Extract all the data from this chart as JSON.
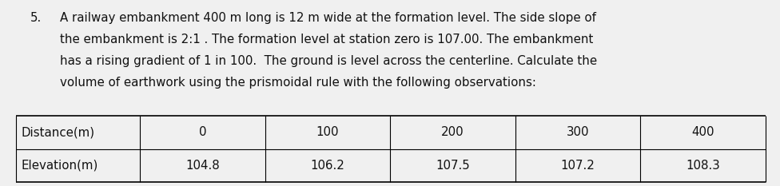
{
  "question_number": "5.",
  "lines": [
    "A railway embankment 400 m long is 12 m wide at the formation level. The side slope of",
    "the embankment is 2:1 . The formation level at station zero is 107.00. The embankment",
    "has a rising gradient of 1 in 100.  The ground is level across the centerline. Calculate the",
    "volume of earthwork using the prismoidal rule with the following observations:"
  ],
  "table_headers": [
    "Distance(m)",
    "0",
    "100",
    "200",
    "300",
    "400"
  ],
  "table_row2": [
    "Elevation(m)",
    "104.8",
    "106.2",
    "107.5",
    "107.2",
    "108.3"
  ],
  "bg_color": "#f0f0f0",
  "text_color": "#111111",
  "font_size": 10.8,
  "table_font_size": 10.8
}
